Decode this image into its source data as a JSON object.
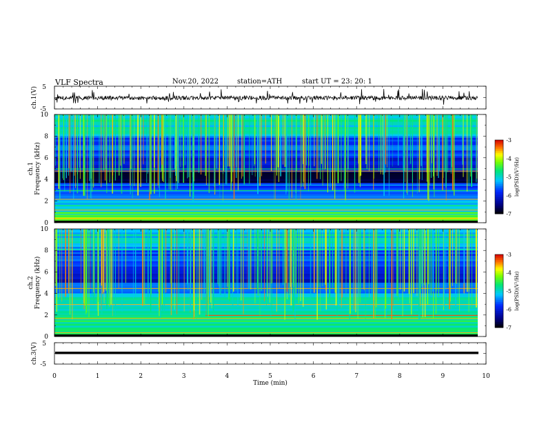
{
  "header": {
    "title": "VLF  Spectra",
    "date": "Nov.20, 2022",
    "station": "station=ATH",
    "start": "start  UT  =    23: 20: 1"
  },
  "chart_data": [
    {
      "type": "line",
      "ylabel": "ch.1(V)",
      "yticks": [
        "5",
        "-5"
      ],
      "ylim": [
        -5,
        5
      ],
      "xlim": [
        0,
        10
      ],
      "grid": false
    },
    {
      "type": "heatmap",
      "ylabel": "ch.1\nFrequency  (kHz)",
      "yticks": [
        "10",
        "8",
        "6",
        "4",
        "2",
        "0"
      ],
      "ylim": [
        0,
        10
      ],
      "xlim": [
        0,
        9.8
      ],
      "colorbar": {
        "label": "log(PSD)(V²/Hz)",
        "ticks": [
          "-3",
          "-4",
          "-5",
          "-6",
          "-7"
        ],
        "range": [
          -7,
          -3
        ]
      }
    },
    {
      "type": "heatmap",
      "ylabel": "ch.2\nFrequency  (kHz)",
      "yticks": [
        "10",
        "8",
        "6",
        "4",
        "2",
        "0"
      ],
      "ylim": [
        0,
        10
      ],
      "xlim": [
        0,
        9.8
      ],
      "colorbar": {
        "label": "log(PSD)(V²/Hz)",
        "ticks": [
          "-3",
          "-4",
          "-5",
          "-6",
          "-7"
        ],
        "range": [
          -7,
          -3
        ]
      }
    },
    {
      "type": "line",
      "ylabel": "ch.3(V)",
      "yticks": [
        "5",
        "-5"
      ],
      "ylim": [
        -5,
        5
      ],
      "xlim": [
        0,
        10
      ],
      "xlabel": "Time  (min)",
      "xticks": [
        "0",
        "1",
        "2",
        "3",
        "4",
        "5",
        "6",
        "7",
        "8",
        "9",
        "10"
      ]
    }
  ]
}
